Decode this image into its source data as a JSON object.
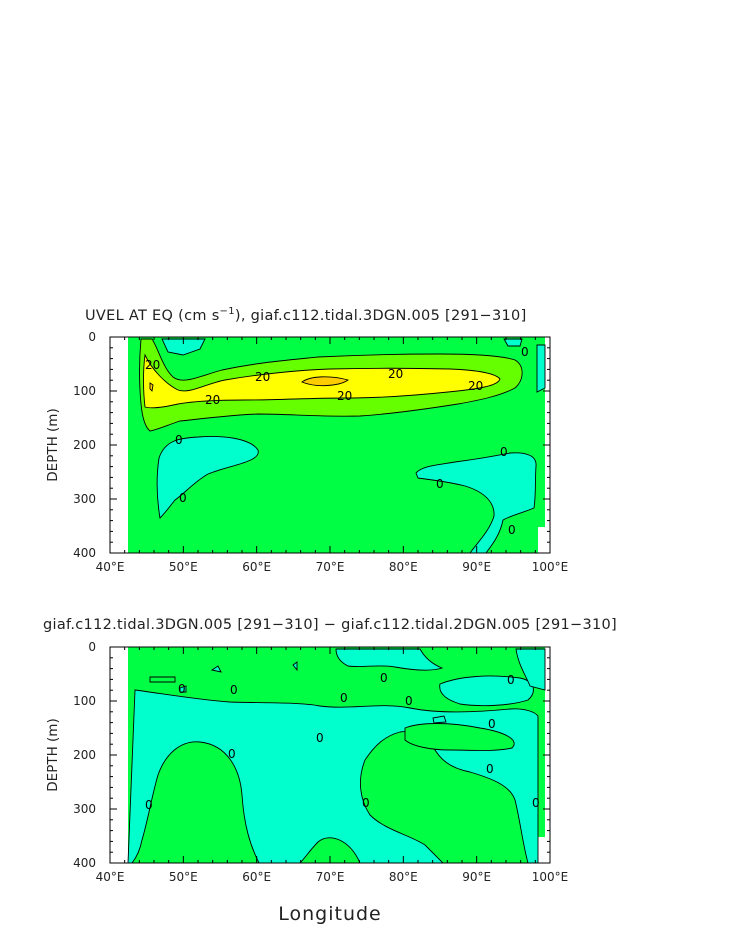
{
  "figure": {
    "xlabel": "Longitude"
  },
  "colors": {
    "neg_fill": "#00ffcc",
    "zero_fill": "#00ff44",
    "mid_fill": "#66ff00",
    "high_fill": "#ffff00",
    "max_fill": "#ffcc00",
    "contour_line": "#000000",
    "axis": "#000000"
  },
  "chart_data": [
    {
      "type": "heatmap",
      "title": "UVEL AT EQ (cm s",
      "title_superscript": "−1",
      "title_suffix": "), giaf.c112.tidal.3DGN.005  [291−310]",
      "ylabel": "DEPTH (m)",
      "xlim": [
        40,
        100
      ],
      "ylim": [
        400,
        0
      ],
      "x_ticks": [
        "40°E",
        "50°E",
        "60°E",
        "70°E",
        "80°E",
        "90°E",
        "100°E"
      ],
      "y_ticks": [
        "0",
        "100",
        "200",
        "300",
        "400"
      ],
      "contour_levels": [
        0,
        20,
        40
      ],
      "contour_labels": [
        "20",
        "20",
        "20",
        "20",
        "20",
        "20",
        "0",
        "0",
        "0",
        "0",
        "0",
        "0"
      ]
    },
    {
      "type": "heatmap",
      "title": "giaf.c112.tidal.3DGN.005  [291−310] − giaf.c112.tidal.2DGN.005  [291−310]",
      "ylabel": "DEPTH (m)",
      "xlim": [
        40,
        100
      ],
      "ylim": [
        400,
        0
      ],
      "x_ticks": [
        "40°E",
        "50°E",
        "60°E",
        "70°E",
        "80°E",
        "90°E",
        "100°E"
      ],
      "y_ticks": [
        "0",
        "100",
        "200",
        "300",
        "400"
      ],
      "contour_levels": [
        0
      ],
      "contour_labels": [
        "0",
        "0",
        "0",
        "0",
        "0",
        "0",
        "0",
        "0",
        "0",
        "0",
        "0",
        "0",
        "0"
      ]
    }
  ]
}
